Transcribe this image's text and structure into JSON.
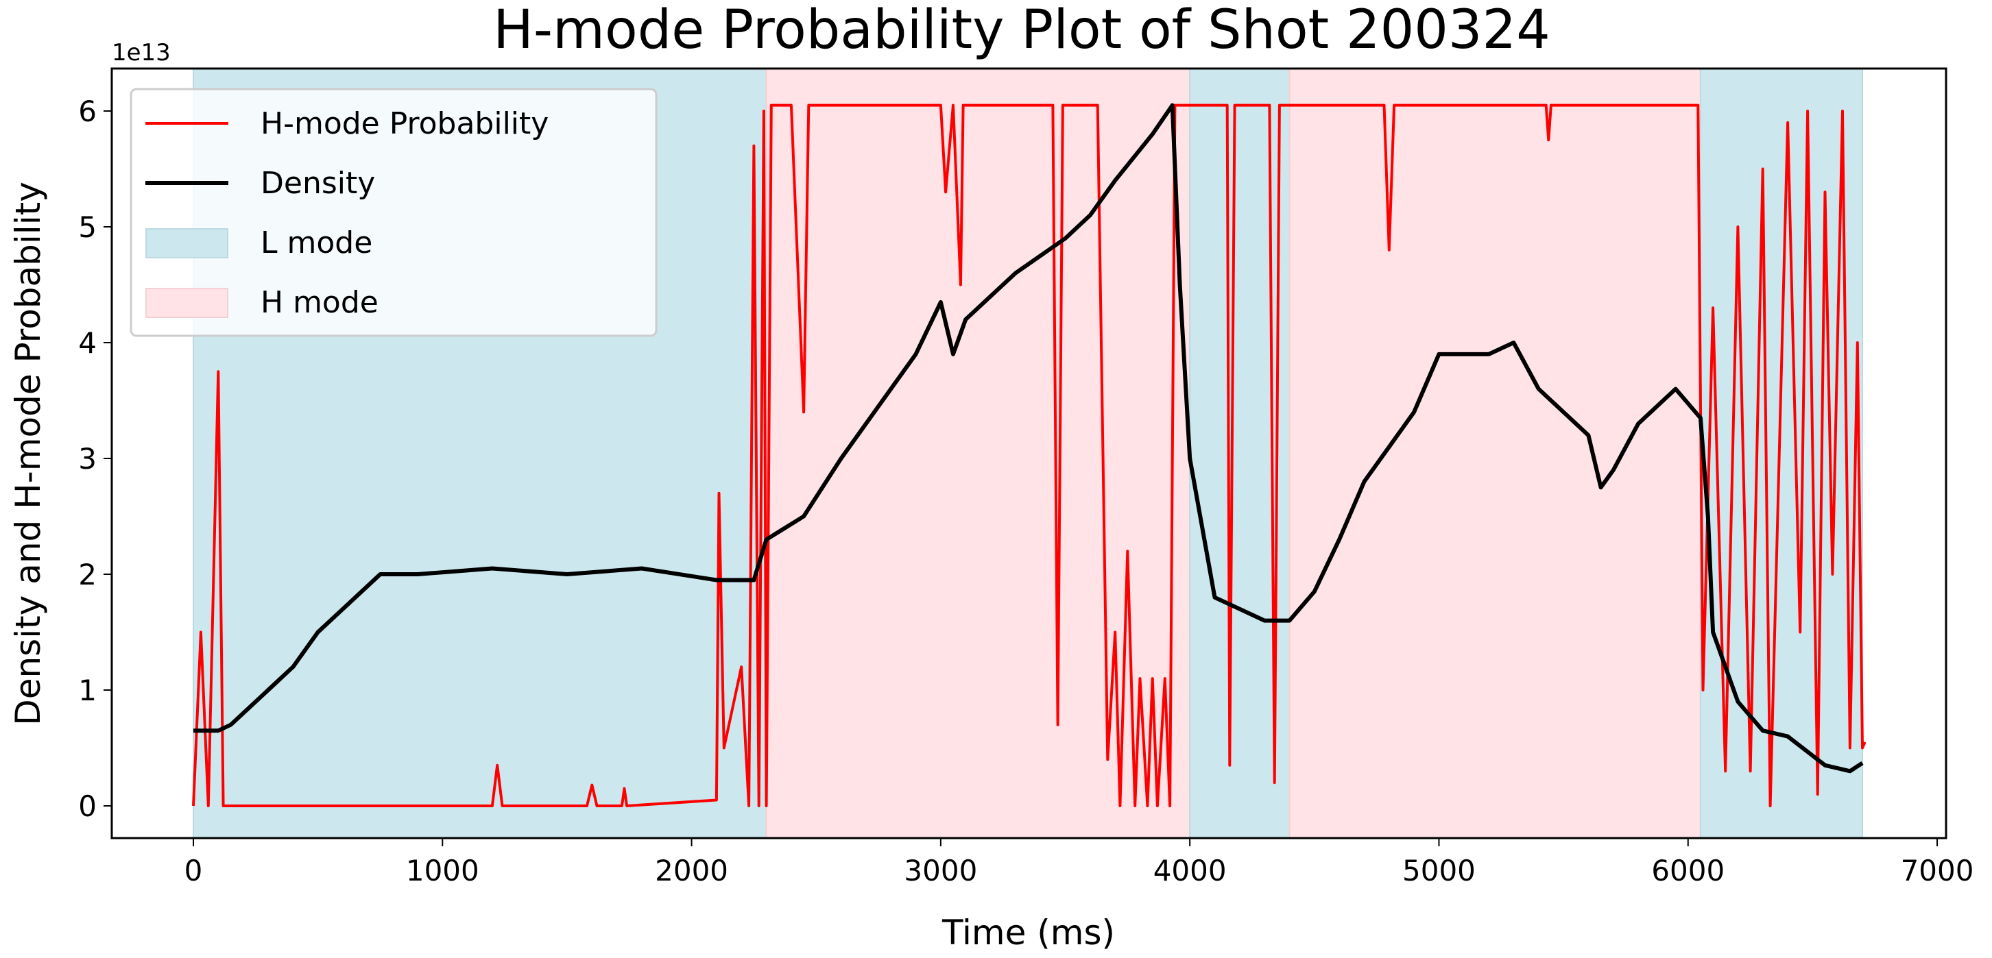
{
  "chart_data": {
    "type": "line",
    "title": "H-mode Probability Plot of Shot 200324",
    "xlabel": "Time (ms)",
    "ylabel": "Density and H-mode Probability",
    "y_offset_label": "1e13",
    "xlim": [
      -330,
      7050
    ],
    "ylim": [
      -0.16,
      6.3
    ],
    "xticks": [
      0,
      1000,
      2000,
      3000,
      4000,
      5000,
      6000,
      7000
    ],
    "xtick_labels": [
      "0",
      "1000",
      "2000",
      "3000",
      "4000",
      "5000",
      "6000",
      "7000"
    ],
    "yticks": [
      0,
      1,
      2,
      3,
      4,
      5,
      6
    ],
    "ytick_labels": [
      "0",
      "1",
      "2",
      "3",
      "4",
      "5",
      "6"
    ],
    "grid": false,
    "legend_position": "top-left",
    "legend": [
      {
        "label": "H-mode Probability",
        "kind": "line",
        "color": "#ff0000"
      },
      {
        "label": "Density",
        "kind": "line",
        "color": "#000000"
      },
      {
        "label": "L mode",
        "kind": "patch",
        "color": "#add8e6"
      },
      {
        "label": "H mode",
        "kind": "patch",
        "color": "#ffc0cb"
      }
    ],
    "regions": [
      {
        "mode": "L mode",
        "start": 0,
        "end": 2300
      },
      {
        "mode": "H mode",
        "start": 2300,
        "end": 4000
      },
      {
        "mode": "L mode",
        "start": 4000,
        "end": 4400
      },
      {
        "mode": "H mode",
        "start": 4400,
        "end": 6050
      },
      {
        "mode": "L mode",
        "start": 6050,
        "end": 6700
      }
    ],
    "series": [
      {
        "name": "Density",
        "color": "#000000",
        "x": [
          0,
          100,
          150,
          300,
          400,
          500,
          600,
          750,
          900,
          1200,
          1500,
          1800,
          2100,
          2250,
          2300,
          2450,
          2600,
          2800,
          2900,
          3000,
          3050,
          3100,
          3300,
          3500,
          3600,
          3700,
          3850,
          3930,
          3960,
          4000,
          4100,
          4200,
          4300,
          4400,
          4500,
          4600,
          4700,
          4900,
          5000,
          5200,
          5300,
          5400,
          5600,
          5650,
          5700,
          5800,
          5950,
          6050,
          6080,
          6100,
          6200,
          6300,
          6400,
          6550,
          6650,
          6700
        ],
        "y": [
          0.65,
          0.65,
          0.7,
          1.0,
          1.2,
          1.5,
          1.7,
          2.0,
          2.0,
          2.05,
          2.0,
          2.05,
          1.95,
          1.95,
          2.3,
          2.5,
          3.0,
          3.6,
          3.9,
          4.35,
          3.9,
          4.2,
          4.6,
          4.9,
          5.1,
          5.4,
          5.8,
          6.05,
          4.5,
          3.0,
          1.8,
          1.7,
          1.6,
          1.6,
          1.85,
          2.3,
          2.8,
          3.4,
          3.9,
          3.9,
          4.0,
          3.6,
          3.2,
          2.75,
          2.9,
          3.3,
          3.6,
          3.35,
          2.5,
          1.5,
          0.9,
          0.65,
          0.6,
          0.35,
          0.3,
          0.37
        ]
      },
      {
        "name": "H-mode Probability",
        "color": "#ff0000",
        "x": [
          0,
          30,
          60,
          100,
          120,
          150,
          1200,
          1220,
          1240,
          1580,
          1600,
          1620,
          1720,
          1730,
          1740,
          2100,
          2110,
          2130,
          2200,
          2230,
          2250,
          2270,
          2290,
          2300,
          2320,
          2400,
          2450,
          2470,
          3000,
          3020,
          3050,
          3080,
          3090,
          3450,
          3470,
          3490,
          3630,
          3670,
          3700,
          3720,
          3750,
          3780,
          3800,
          3830,
          3850,
          3870,
          3900,
          3920,
          3940,
          4150,
          4160,
          4180,
          4320,
          4340,
          4360,
          4780,
          4800,
          4820,
          5430,
          5440,
          5450,
          6040,
          6060,
          6100,
          6150,
          6200,
          6250,
          6300,
          6330,
          6400,
          6450,
          6480,
          6520,
          6550,
          6580,
          6620,
          6650,
          6680,
          6700,
          6710
        ],
        "y": [
          0,
          1.5,
          0,
          3.75,
          0,
          0,
          0,
          0.35,
          0,
          0,
          0.18,
          0,
          0,
          0.15,
          0,
          0.05,
          2.7,
          0.5,
          1.2,
          0,
          5.7,
          0,
          6.0,
          0,
          6.05,
          6.05,
          3.4,
          6.05,
          6.05,
          5.3,
          6.05,
          4.5,
          6.05,
          6.05,
          0.7,
          6.05,
          6.05,
          0.4,
          1.5,
          0,
          2.2,
          0,
          1.1,
          0,
          1.1,
          0,
          1.1,
          0,
          6.05,
          6.05,
          0.35,
          6.05,
          6.05,
          0.2,
          6.05,
          6.05,
          4.8,
          6.05,
          6.05,
          5.75,
          6.05,
          6.05,
          1.0,
          4.3,
          0.3,
          5.0,
          0.3,
          5.5,
          0,
          5.9,
          1.5,
          6.0,
          0.1,
          5.3,
          2.0,
          6.0,
          0.5,
          4.0,
          0.5,
          0.55
        ]
      }
    ]
  }
}
